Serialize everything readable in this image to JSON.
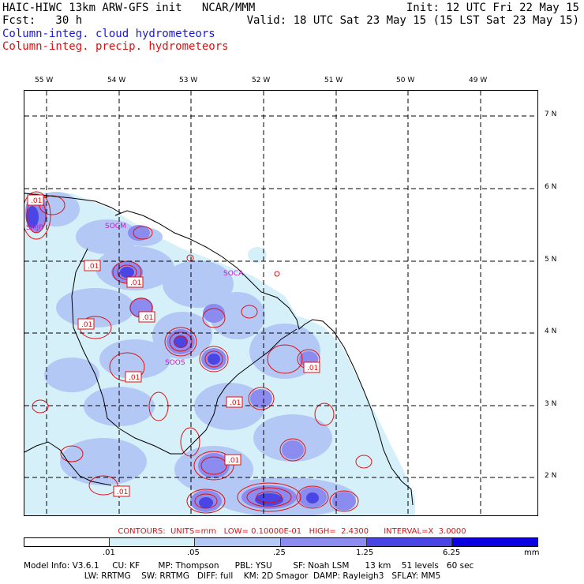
{
  "header": {
    "line1_left": "HAIC-HIWC 13km ARW-GFS init   NCAR/MMM",
    "line1_right": "Init: 12 UTC Fri 22 May 15",
    "line2_left": "Fcst:   30 h",
    "line2_right": "Valid: 18 UTC Sat 23 May 15 (15 LST Sat 23 May 15)",
    "legend_blue": "Column-integ. cloud hydrometeors",
    "legend_red": "Column-integ. precip. hydrometeors"
  },
  "axes": {
    "lon_labels": [
      "55 W",
      "54 W",
      "53 W",
      "52 W",
      "51 W",
      "50 W",
      "49 W"
    ],
    "lat_labels": [
      "7 N",
      "6 N",
      "5 N",
      "4 N",
      "3 N",
      "2 N"
    ]
  },
  "stations": [
    "SOCM",
    "SOCA",
    "SOOS",
    "SMJP"
  ],
  "contour_label": ".01",
  "contours_line": "CONTOURS:  UNITS=mm   LOW= 0.10000E-01   HIGH=  2.4300      INTERVAL=X  3.0000",
  "colorbar": {
    "labels": [
      ".01",
      ".05",
      ".25",
      "1.25",
      "6.25"
    ],
    "units": "mm",
    "colors": [
      "#ffffff",
      "#d6f0fa",
      "#b4c8f5",
      "#8c8cf0",
      "#4a46e6",
      "#0a00e0"
    ]
  },
  "model_info": {
    "line1": "Model Info: V3.6.1     CU: KF       MP: Thompson      PBL: YSU        SF: Noah LSM      13 km    51 levels   60 sec",
    "line2": "                       LW: RRTMG    SW: RRTMG   DIFF: full    KM: 2D Smagor  DAMP: Rayleigh3   SFLAY: MM5"
  }
}
